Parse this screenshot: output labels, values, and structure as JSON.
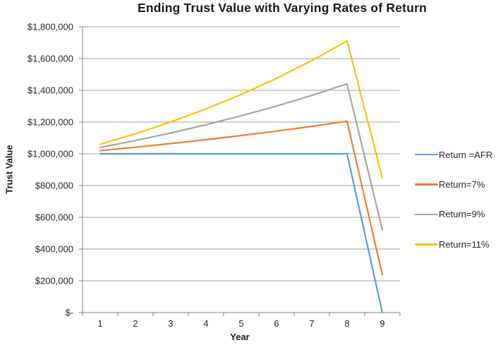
{
  "chart_data": {
    "type": "line",
    "title": "Ending Trust Value with Varying Rates of Return",
    "xlabel": "Year",
    "ylabel": "Trust Value",
    "categories": [
      "1",
      "2",
      "3",
      "4",
      "5",
      "6",
      "7",
      "8",
      "9"
    ],
    "ylim": [
      0,
      1800000
    ],
    "ytick_step": 200000,
    "ytick_labels": [
      "$-",
      "$200,000",
      "$400,000",
      "$600,000",
      "$800,000",
      "$1,000,000",
      "$1,200,000",
      "$1,400,000",
      "$1,600,000",
      "$1,800,000"
    ],
    "grid": "horizontal",
    "legend_position": "right",
    "colors": {
      "axis": "#808080",
      "gridline": "#9d9d9d",
      "tick_text": "#262626",
      "title_text": "#1a1a1a"
    },
    "series": [
      {
        "name": "Return =AFR",
        "color": "#5B9BD5",
        "values": [
          1000000,
          1000000,
          1000000,
          1000000,
          1000000,
          1000000,
          1000000,
          1000000,
          0
        ]
      },
      {
        "name": "Return=7%",
        "color": "#ED7D31",
        "values": [
          1020000,
          1041400,
          1064300,
          1088800,
          1115000,
          1143100,
          1173100,
          1205200,
          239600
        ]
      },
      {
        "name": "Return=9%",
        "color": "#A5A5A5",
        "values": [
          1040000,
          1083600,
          1131100,
          1182900,
          1239400,
          1300900,
          1368000,
          1441100,
          520800
        ]
      },
      {
        "name": "Return=11%",
        "color": "#FFC000",
        "values": [
          1060000,
          1126600,
          1200500,
          1282600,
          1373700,
          1474800,
          1587000,
          1711600,
          849800
        ]
      }
    ]
  }
}
